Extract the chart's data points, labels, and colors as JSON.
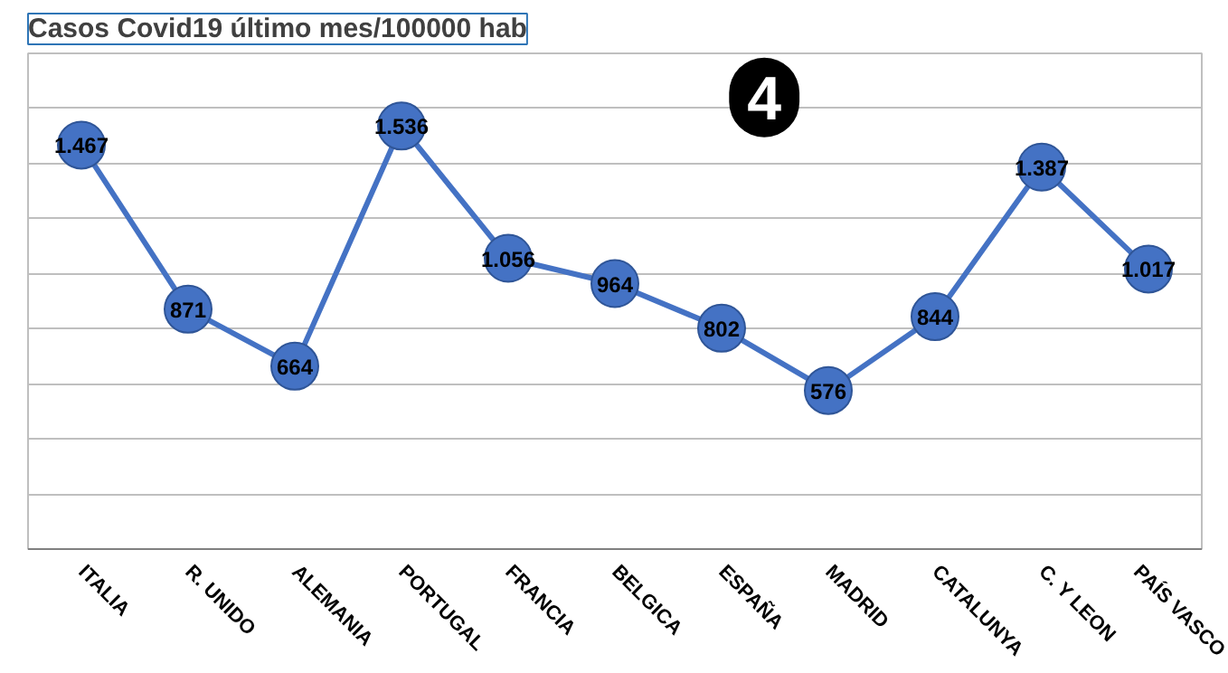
{
  "chart_data": {
    "type": "line",
    "title": "Casos Covid19 último mes/100000 hab",
    "categories": [
      "ITALIA",
      "R. UNIDO",
      "ALEMANIA",
      "PORTUGAL",
      "FRANCIA",
      "BELGICA",
      "ESPAÑA",
      "MADRID",
      "CATALUNYA",
      "C. Y LEON",
      "PAÍS VASCO"
    ],
    "series": [
      {
        "color": "#4472c4",
        "values": [
          1467,
          871,
          664,
          1536,
          1056,
          964,
          802,
          576,
          844,
          1387,
          1017
        ],
        "value_labels": [
          "1.467",
          "871",
          "664",
          "1.536",
          "1.056",
          "964",
          "802",
          "576",
          "844",
          "1.387",
          "1.017"
        ]
      }
    ],
    "ylim": [
      0,
      1800
    ],
    "yticks": [
      {
        "value": 0,
        "label": null
      },
      {
        "value": 200,
        "label": null
      },
      {
        "value": 400,
        "label": null
      },
      {
        "value": 600,
        "label": null
      },
      {
        "value": 800,
        "label": null
      },
      {
        "value": 1000,
        "label": null
      },
      {
        "value": 1200,
        "label": null
      },
      {
        "value": 1400,
        "label": null
      },
      {
        "value": 1600,
        "label": null
      },
      {
        "value": 1800,
        "label": null
      }
    ],
    "tick_labels": "x",
    "grid": "y",
    "marker": "circle",
    "line_style": "solid",
    "annotations": [
      "4"
    ]
  }
}
